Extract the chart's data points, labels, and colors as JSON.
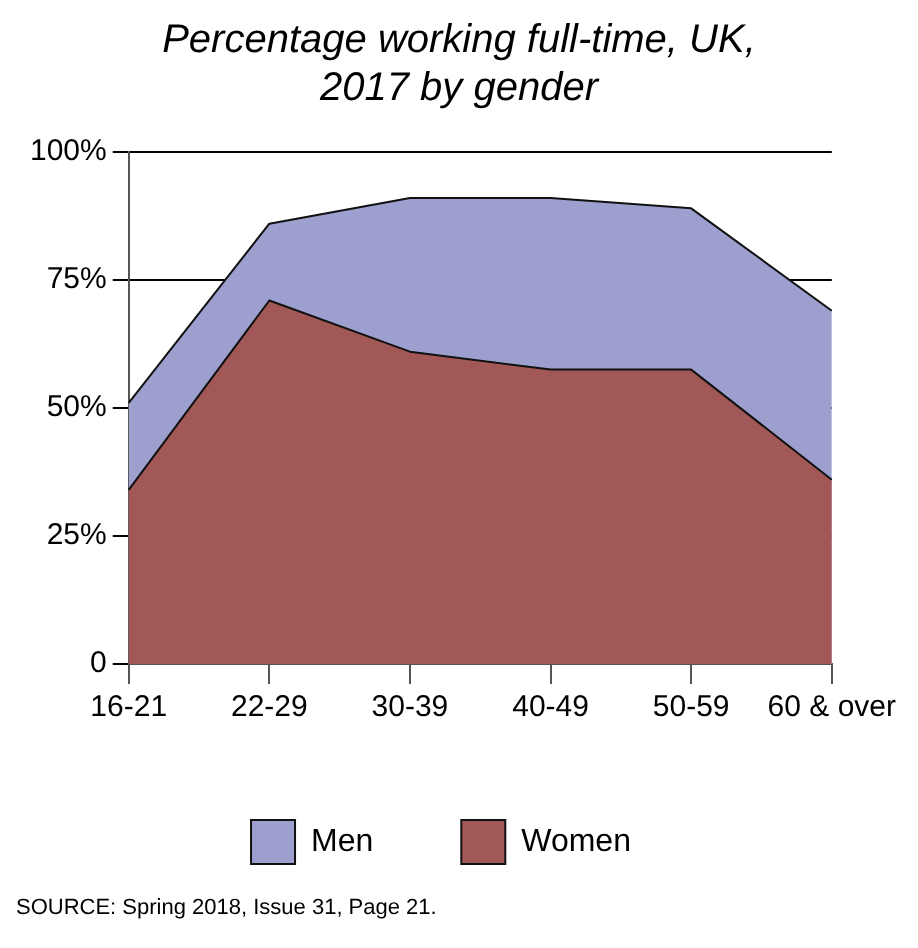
{
  "chart_data": {
    "type": "area",
    "title": "Percentage working full-time, UK, 2017 by gender",
    "categories": [
      "16-21",
      "22-29",
      "30-39",
      "40-49",
      "50-59",
      "60 & over"
    ],
    "series": [
      {
        "name": "Men",
        "color": "#9d9fce",
        "values": [
          51,
          86,
          91,
          91,
          89,
          69
        ]
      },
      {
        "name": "Women",
        "color": "#a35858",
        "values": [
          34,
          71,
          61,
          57.5,
          57.5,
          36
        ]
      }
    ],
    "ylim": [
      0,
      100
    ],
    "yticks": [
      {
        "value": 0,
        "label": "0"
      },
      {
        "value": 25,
        "label": "25%"
      },
      {
        "value": 50,
        "label": "50%"
      },
      {
        "value": 75,
        "label": "75%"
      },
      {
        "value": 100,
        "label": "100%"
      }
    ],
    "grid": "y",
    "legend": "bottom",
    "annotations": [
      "SOURCE: Spring 2018, Issue 31, Page 21."
    ]
  }
}
